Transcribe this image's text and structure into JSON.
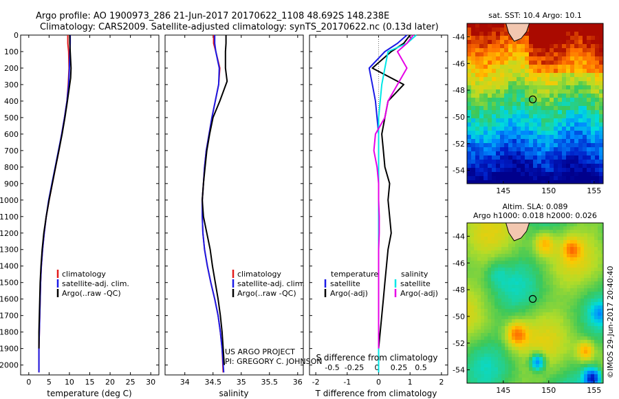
{
  "header": {
    "line1": "Argo profile: AO 1900973_286 21-Jun-2017 20170622_1108 48.692S 148.238E",
    "line2": "Climatology: CARS2009. Satellite-adjusted climatology: synTS_20170622.nc (0.13d later)"
  },
  "colors": {
    "climatology": "#e21b1b",
    "satellite": "#1a1ae6",
    "argo": "#000000",
    "salinity_satellite": "#00e6e6",
    "salinity_argo": "#e600e6"
  },
  "credits": {
    "project": "US ARGO PROJECT",
    "pi": "PI: GREGORY C. JOHNSON",
    "stamp": "©IMOS 29-Jun-2017 20:40:40"
  },
  "chart_data": [
    {
      "type": "line",
      "id": "temperature",
      "xlabel": "temperature (deg C)",
      "ylabel": "",
      "xlim": [
        -2,
        32
      ],
      "ylim": [
        2060,
        0
      ],
      "xticks": [
        0,
        5,
        10,
        15,
        20,
        25,
        30
      ],
      "yticks": [
        0,
        100,
        200,
        300,
        400,
        500,
        600,
        700,
        800,
        900,
        1000,
        1100,
        1200,
        1300,
        1400,
        1500,
        1600,
        1700,
        1800,
        1900,
        2000
      ],
      "legend": [
        "climatology",
        "satellite-adj. clim.",
        "Argo(..raw -QC)"
      ],
      "series": [
        {
          "name": "climatology",
          "color_key": "climatology",
          "x": [
            9.6,
            9.6,
            9.8,
            9.9,
            9.7,
            9.4,
            8.8,
            8.1,
            7.4,
            6.6,
            5.8,
            5.0,
            4.3,
            3.8,
            3.4,
            3.1,
            2.9,
            2.8,
            2.7,
            2.6,
            2.5,
            2.5
          ],
          "y": [
            0,
            50,
            100,
            200,
            300,
            400,
            500,
            600,
            700,
            800,
            900,
            1000,
            1100,
            1200,
            1300,
            1400,
            1500,
            1600,
            1700,
            1800,
            1900,
            2045
          ]
        },
        {
          "name": "satellite-adj. clim.",
          "color_key": "satellite",
          "x": [
            10.2,
            10.2,
            10.1,
            10.0,
            9.8,
            9.4,
            8.8,
            8.1,
            7.3,
            6.5,
            5.7,
            4.9,
            4.3,
            3.8,
            3.4,
            3.1,
            2.9,
            2.8,
            2.7,
            2.6,
            2.5,
            2.5
          ],
          "y": [
            0,
            50,
            100,
            200,
            300,
            400,
            500,
            600,
            700,
            800,
            900,
            1000,
            1100,
            1200,
            1300,
            1400,
            1500,
            1600,
            1700,
            1800,
            1900,
            2045
          ]
        },
        {
          "name": "Argo(..raw -QC)",
          "color_key": "argo",
          "x": [
            10.1,
            10.1,
            10.2,
            10.4,
            10.3,
            9.5,
            8.9,
            8.2,
            7.4,
            6.6,
            5.8,
            5.0,
            4.3,
            3.7,
            3.3,
            3.0,
            2.8,
            2.7,
            2.6,
            2.5,
            2.5
          ],
          "y": [
            0,
            50,
            100,
            200,
            260,
            400,
            500,
            600,
            700,
            800,
            900,
            1000,
            1100,
            1200,
            1300,
            1400,
            1500,
            1600,
            1700,
            1800,
            1900
          ]
        }
      ]
    },
    {
      "type": "line",
      "id": "salinity",
      "xlabel": "salinity",
      "ylabel": "",
      "xlim": [
        33.65,
        36.1
      ],
      "ylim": [
        2060,
        0
      ],
      "xticks": [
        34,
        34.5,
        35,
        35.5,
        36
      ],
      "legend": [
        "climatology",
        "satellite-adj. clim.",
        "Argo(..raw -QC)"
      ],
      "series": [
        {
          "name": "climatology",
          "color_key": "climatology",
          "x": [
            34.51,
            34.51,
            34.55,
            34.62,
            34.6,
            34.54,
            34.48,
            34.43,
            34.38,
            34.35,
            34.33,
            34.31,
            34.31,
            34.32,
            34.35,
            34.4,
            34.46,
            34.53,
            34.59,
            34.63,
            34.66,
            34.68
          ],
          "y": [
            0,
            50,
            100,
            200,
            300,
            400,
            500,
            600,
            700,
            800,
            900,
            1000,
            1100,
            1200,
            1300,
            1400,
            1500,
            1600,
            1700,
            1800,
            1900,
            2045
          ]
        },
        {
          "name": "satellite-adj. clim.",
          "color_key": "satellite",
          "x": [
            34.53,
            34.53,
            34.55,
            34.61,
            34.6,
            34.54,
            34.48,
            34.43,
            34.38,
            34.35,
            34.33,
            34.31,
            34.31,
            34.32,
            34.35,
            34.4,
            34.46,
            34.53,
            34.59,
            34.63,
            34.66,
            34.69
          ],
          "y": [
            0,
            50,
            100,
            200,
            300,
            400,
            500,
            600,
            700,
            800,
            900,
            1000,
            1100,
            1200,
            1300,
            1400,
            1500,
            1600,
            1700,
            1800,
            1900,
            2045
          ]
        },
        {
          "name": "Argo(..raw -QC)",
          "color_key": "argo",
          "x": [
            34.73,
            34.73,
            34.72,
            34.72,
            34.75,
            34.62,
            34.5,
            34.44,
            34.39,
            34.36,
            34.33,
            34.31,
            34.33,
            34.39,
            34.45,
            34.49,
            34.54,
            34.59,
            34.63,
            34.66,
            34.68,
            34.7
          ],
          "y": [
            0,
            50,
            100,
            200,
            280,
            400,
            500,
            600,
            700,
            800,
            900,
            1000,
            1100,
            1200,
            1300,
            1400,
            1500,
            1600,
            1700,
            1800,
            1900,
            2000
          ]
        }
      ]
    },
    {
      "type": "line",
      "id": "difference",
      "xlabel": "T difference from climatology",
      "top_label": "S difference from climatology",
      "xlim": [
        -2.2,
        2.2
      ],
      "ylim": [
        2060,
        0
      ],
      "xticks": [
        -2,
        -1,
        0,
        1,
        2
      ],
      "s_ticks": [
        -0.5,
        -0.25,
        0,
        0.25,
        0.5
      ],
      "legend_titles": [
        "temperature",
        "salinity"
      ],
      "legend": [
        "satellite",
        "Argo(-adj)",
        "satellite",
        "Argo(-adj)"
      ],
      "series": [
        {
          "name": "satellite",
          "color_key": "satellite",
          "x": [
            0.9,
            0.6,
            0.2,
            -0.3,
            -0.2,
            -0.1,
            -0.05,
            0.0,
            0.0,
            0.0,
            0.0,
            0.0,
            0.0,
            0.0,
            0.0,
            0.0,
            0.0,
            0.0,
            0.0,
            0.0,
            0.0,
            0.0
          ],
          "y": [
            0,
            50,
            100,
            200,
            300,
            400,
            500,
            600,
            700,
            800,
            900,
            1000,
            1100,
            1200,
            1300,
            1400,
            1500,
            1600,
            1700,
            1800,
            1900,
            2045
          ]
        },
        {
          "name": "Argo(-adj)",
          "color_key": "argo",
          "x": [
            1.0,
            0.8,
            0.4,
            -0.2,
            0.8,
            0.3,
            0.2,
            0.1,
            0.15,
            0.2,
            0.35,
            0.3,
            0.35,
            0.4,
            0.3,
            0.25,
            0.2,
            0.15,
            0.1,
            0.05,
            0.0
          ],
          "y": [
            0,
            50,
            100,
            200,
            300,
            400,
            500,
            600,
            700,
            800,
            900,
            1000,
            1100,
            1200,
            1300,
            1400,
            1500,
            1600,
            1700,
            1800,
            1900
          ]
        },
        {
          "name": "satellite",
          "color_key": "salinity_satellite",
          "x": [
            1.2,
            0.9,
            0.3,
            0.2,
            0.1,
            0.05,
            0.0,
            0.0,
            0.0,
            0.0,
            0.0,
            0.0,
            0.0,
            0.0,
            0.0,
            0.0,
            0.0,
            0.0,
            0.0,
            0.0,
            0.0,
            0.0
          ],
          "y": [
            0,
            50,
            100,
            200,
            300,
            400,
            500,
            600,
            700,
            800,
            900,
            1000,
            1100,
            1200,
            1300,
            1400,
            1500,
            1600,
            1700,
            1800,
            1900,
            2045
          ]
        },
        {
          "name": "Argo(-adj)",
          "color_key": "salinity_argo",
          "x": [
            1.1,
            0.9,
            0.6,
            0.9,
            0.6,
            0.3,
            0.2,
            -0.1,
            -0.15,
            -0.05,
            0.0,
            0.0,
            0.02,
            0.02,
            0.0,
            0.0,
            0.0,
            0.0,
            0.0,
            0.0,
            0.0
          ],
          "y": [
            0,
            50,
            100,
            200,
            300,
            400,
            500,
            600,
            700,
            800,
            900,
            1000,
            1100,
            1200,
            1300,
            1400,
            1500,
            1600,
            1700,
            1800,
            1900
          ]
        }
      ]
    },
    {
      "type": "heatmap",
      "id": "sst_map",
      "title": "sat. SST: 10.4  Argo: 10.1",
      "xlim": [
        141,
        156
      ],
      "ylim": [
        -55,
        -43
      ],
      "xticks": [
        145,
        150,
        155
      ],
      "yticks": [
        -44,
        -46,
        -48,
        -50,
        -52,
        -54
      ],
      "marker": {
        "lon": 148.24,
        "lat": -48.69
      }
    },
    {
      "type": "heatmap",
      "id": "sla_map",
      "title_line1": "Altim. SLA: 0.089",
      "title_line2": "Argo h1000: 0.018 h2000: 0.026",
      "xlim": [
        141,
        156
      ],
      "ylim": [
        -55,
        -43
      ],
      "xticks": [
        145,
        150,
        155
      ],
      "yticks": [
        -44,
        -46,
        -48,
        -50,
        -52,
        -54
      ],
      "marker": {
        "lon": 148.24,
        "lat": -48.69
      }
    }
  ]
}
